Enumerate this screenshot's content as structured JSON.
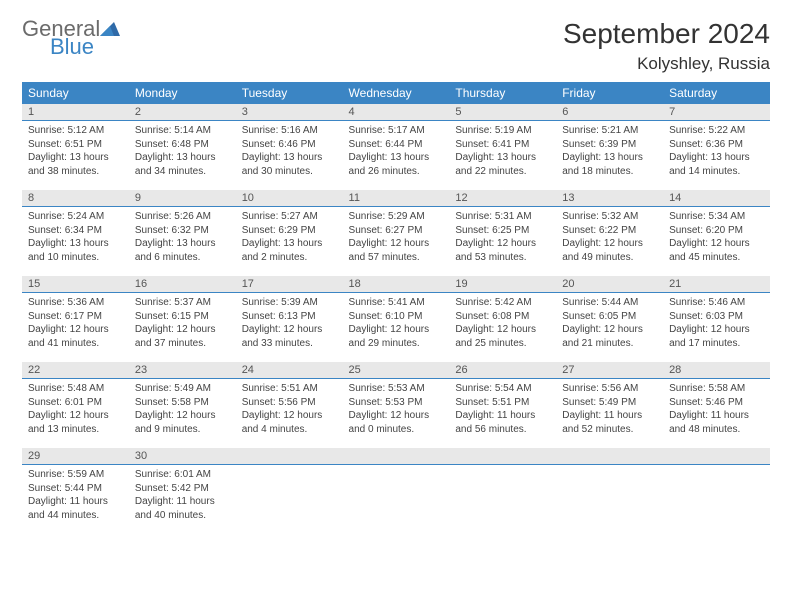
{
  "logo": {
    "general": "General",
    "blue": "Blue"
  },
  "title": "September 2024",
  "location": "Kolyshley, Russia",
  "colors": {
    "accent": "#3b85c4",
    "header_bg": "#3b85c4",
    "day_bar_bg": "#e8e8e8",
    "text": "#333333"
  },
  "weekdays": [
    "Sunday",
    "Monday",
    "Tuesday",
    "Wednesday",
    "Thursday",
    "Friday",
    "Saturday"
  ],
  "days": [
    {
      "n": "1",
      "sunrise": "Sunrise: 5:12 AM",
      "sunset": "Sunset: 6:51 PM",
      "daylight": "Daylight: 13 hours and 38 minutes."
    },
    {
      "n": "2",
      "sunrise": "Sunrise: 5:14 AM",
      "sunset": "Sunset: 6:48 PM",
      "daylight": "Daylight: 13 hours and 34 minutes."
    },
    {
      "n": "3",
      "sunrise": "Sunrise: 5:16 AM",
      "sunset": "Sunset: 6:46 PM",
      "daylight": "Daylight: 13 hours and 30 minutes."
    },
    {
      "n": "4",
      "sunrise": "Sunrise: 5:17 AM",
      "sunset": "Sunset: 6:44 PM",
      "daylight": "Daylight: 13 hours and 26 minutes."
    },
    {
      "n": "5",
      "sunrise": "Sunrise: 5:19 AM",
      "sunset": "Sunset: 6:41 PM",
      "daylight": "Daylight: 13 hours and 22 minutes."
    },
    {
      "n": "6",
      "sunrise": "Sunrise: 5:21 AM",
      "sunset": "Sunset: 6:39 PM",
      "daylight": "Daylight: 13 hours and 18 minutes."
    },
    {
      "n": "7",
      "sunrise": "Sunrise: 5:22 AM",
      "sunset": "Sunset: 6:36 PM",
      "daylight": "Daylight: 13 hours and 14 minutes."
    },
    {
      "n": "8",
      "sunrise": "Sunrise: 5:24 AM",
      "sunset": "Sunset: 6:34 PM",
      "daylight": "Daylight: 13 hours and 10 minutes."
    },
    {
      "n": "9",
      "sunrise": "Sunrise: 5:26 AM",
      "sunset": "Sunset: 6:32 PM",
      "daylight": "Daylight: 13 hours and 6 minutes."
    },
    {
      "n": "10",
      "sunrise": "Sunrise: 5:27 AM",
      "sunset": "Sunset: 6:29 PM",
      "daylight": "Daylight: 13 hours and 2 minutes."
    },
    {
      "n": "11",
      "sunrise": "Sunrise: 5:29 AM",
      "sunset": "Sunset: 6:27 PM",
      "daylight": "Daylight: 12 hours and 57 minutes."
    },
    {
      "n": "12",
      "sunrise": "Sunrise: 5:31 AM",
      "sunset": "Sunset: 6:25 PM",
      "daylight": "Daylight: 12 hours and 53 minutes."
    },
    {
      "n": "13",
      "sunrise": "Sunrise: 5:32 AM",
      "sunset": "Sunset: 6:22 PM",
      "daylight": "Daylight: 12 hours and 49 minutes."
    },
    {
      "n": "14",
      "sunrise": "Sunrise: 5:34 AM",
      "sunset": "Sunset: 6:20 PM",
      "daylight": "Daylight: 12 hours and 45 minutes."
    },
    {
      "n": "15",
      "sunrise": "Sunrise: 5:36 AM",
      "sunset": "Sunset: 6:17 PM",
      "daylight": "Daylight: 12 hours and 41 minutes."
    },
    {
      "n": "16",
      "sunrise": "Sunrise: 5:37 AM",
      "sunset": "Sunset: 6:15 PM",
      "daylight": "Daylight: 12 hours and 37 minutes."
    },
    {
      "n": "17",
      "sunrise": "Sunrise: 5:39 AM",
      "sunset": "Sunset: 6:13 PM",
      "daylight": "Daylight: 12 hours and 33 minutes."
    },
    {
      "n": "18",
      "sunrise": "Sunrise: 5:41 AM",
      "sunset": "Sunset: 6:10 PM",
      "daylight": "Daylight: 12 hours and 29 minutes."
    },
    {
      "n": "19",
      "sunrise": "Sunrise: 5:42 AM",
      "sunset": "Sunset: 6:08 PM",
      "daylight": "Daylight: 12 hours and 25 minutes."
    },
    {
      "n": "20",
      "sunrise": "Sunrise: 5:44 AM",
      "sunset": "Sunset: 6:05 PM",
      "daylight": "Daylight: 12 hours and 21 minutes."
    },
    {
      "n": "21",
      "sunrise": "Sunrise: 5:46 AM",
      "sunset": "Sunset: 6:03 PM",
      "daylight": "Daylight: 12 hours and 17 minutes."
    },
    {
      "n": "22",
      "sunrise": "Sunrise: 5:48 AM",
      "sunset": "Sunset: 6:01 PM",
      "daylight": "Daylight: 12 hours and 13 minutes."
    },
    {
      "n": "23",
      "sunrise": "Sunrise: 5:49 AM",
      "sunset": "Sunset: 5:58 PM",
      "daylight": "Daylight: 12 hours and 9 minutes."
    },
    {
      "n": "24",
      "sunrise": "Sunrise: 5:51 AM",
      "sunset": "Sunset: 5:56 PM",
      "daylight": "Daylight: 12 hours and 4 minutes."
    },
    {
      "n": "25",
      "sunrise": "Sunrise: 5:53 AM",
      "sunset": "Sunset: 5:53 PM",
      "daylight": "Daylight: 12 hours and 0 minutes."
    },
    {
      "n": "26",
      "sunrise": "Sunrise: 5:54 AM",
      "sunset": "Sunset: 5:51 PM",
      "daylight": "Daylight: 11 hours and 56 minutes."
    },
    {
      "n": "27",
      "sunrise": "Sunrise: 5:56 AM",
      "sunset": "Sunset: 5:49 PM",
      "daylight": "Daylight: 11 hours and 52 minutes."
    },
    {
      "n": "28",
      "sunrise": "Sunrise: 5:58 AM",
      "sunset": "Sunset: 5:46 PM",
      "daylight": "Daylight: 11 hours and 48 minutes."
    },
    {
      "n": "29",
      "sunrise": "Sunrise: 5:59 AM",
      "sunset": "Sunset: 5:44 PM",
      "daylight": "Daylight: 11 hours and 44 minutes."
    },
    {
      "n": "30",
      "sunrise": "Sunrise: 6:01 AM",
      "sunset": "Sunset: 5:42 PM",
      "daylight": "Daylight: 11 hours and 40 minutes."
    }
  ]
}
